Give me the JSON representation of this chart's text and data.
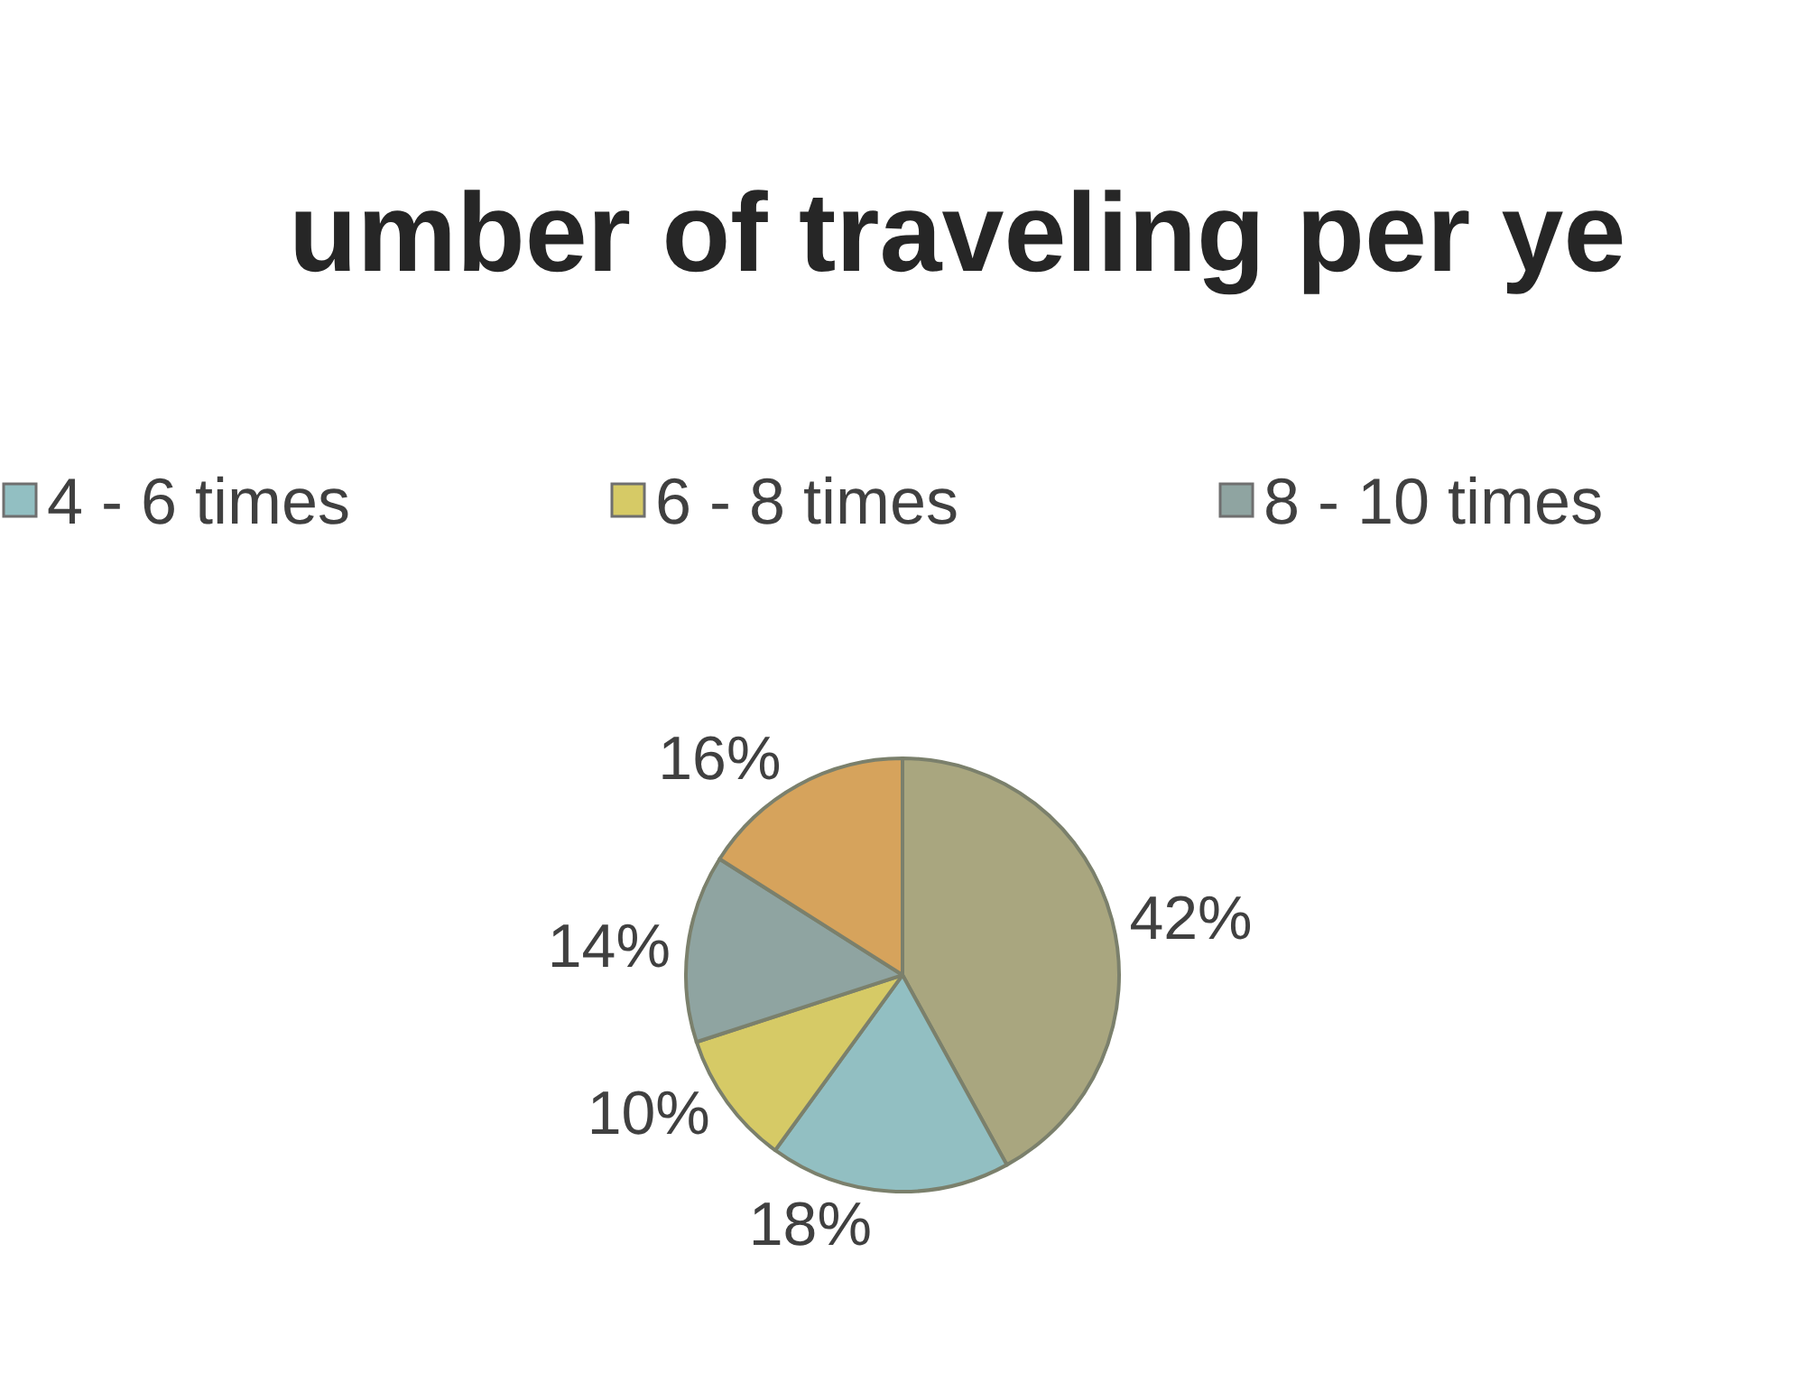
{
  "chart_data": {
    "type": "pie",
    "title": "umber of traveling per ye",
    "categories": [
      null,
      "4 - 6 times",
      "6 - 8 times",
      "8 - 10 times",
      null
    ],
    "values": [
      42,
      18,
      10,
      14,
      16
    ],
    "value_labels": [
      "42%",
      "18%",
      "10%",
      "14%",
      "16%"
    ],
    "colors": [
      "#a9a67f",
      "#92bfc2",
      "#d6ca66",
      "#8fa4a1",
      "#d6a35c"
    ],
    "legend": "top"
  }
}
